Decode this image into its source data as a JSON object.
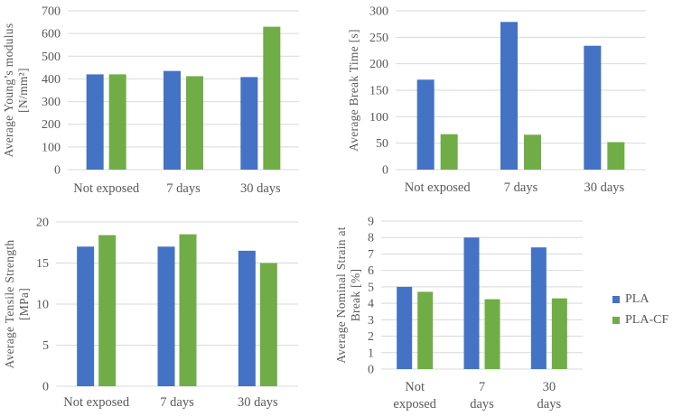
{
  "figure": {
    "description": "2x2 grid of grouped bar charts comparing PLA and PLA-CF after UV exposure",
    "background": "#ffffff"
  },
  "colors": {
    "pla": "#4472C4",
    "pla_cf": "#70AD47",
    "axis_text": "#595959",
    "gridline": "#D9D9D9"
  },
  "legend": {
    "position": "middle-right",
    "items": [
      {
        "label": "PLA",
        "color": "#4472C4"
      },
      {
        "label": "PLA-CF",
        "color": "#70AD47"
      }
    ]
  },
  "chart_data": [
    {
      "type": "bar",
      "position": "top-left",
      "title": "",
      "xlabel": "",
      "ylabel": "Average Young’s modulus [N/mm²]",
      "ylabel_lines": [
        "Average Young’s modulus",
        "[N/mm²]"
      ],
      "categories": [
        "Not exposed",
        "7 days",
        "30 days"
      ],
      "series": [
        {
          "name": "PLA",
          "color": "#4472C4",
          "values": [
            420,
            435,
            408
          ]
        },
        {
          "name": "PLA-CF",
          "color": "#70AD47",
          "values": [
            420,
            412,
            630
          ]
        }
      ],
      "ylim": [
        0,
        700
      ],
      "yticks": [
        0,
        100,
        200,
        300,
        400,
        500,
        600,
        700
      ],
      "grid": true,
      "legend_position": "none"
    },
    {
      "type": "bar",
      "position": "top-right",
      "title": "",
      "xlabel": "",
      "ylabel": "Average Break Time [s]",
      "ylabel_lines": [
        "Average Break Time [s]"
      ],
      "categories": [
        "Not exposed",
        "7 days",
        "30 days"
      ],
      "series": [
        {
          "name": "PLA",
          "color": "#4472C4",
          "values": [
            170,
            279,
            234
          ]
        },
        {
          "name": "PLA-CF",
          "color": "#70AD47",
          "values": [
            67,
            66,
            52
          ]
        }
      ],
      "ylim": [
        0,
        300
      ],
      "yticks": [
        0,
        50,
        100,
        150,
        200,
        250,
        300
      ],
      "grid": true,
      "legend_position": "none"
    },
    {
      "type": "bar",
      "position": "bottom-left",
      "title": "",
      "xlabel": "",
      "ylabel": "Average Tensile Strength [MPa]",
      "ylabel_lines": [
        "Average Tensile Strength",
        "[MPa]"
      ],
      "categories": [
        "Not exposed",
        "7 days",
        "30 days"
      ],
      "series": [
        {
          "name": "PLA",
          "color": "#4472C4",
          "values": [
            17,
            17,
            16.5
          ]
        },
        {
          "name": "PLA-CF",
          "color": "#70AD47",
          "values": [
            18.4,
            18.5,
            15
          ]
        }
      ],
      "ylim": [
        0,
        20
      ],
      "yticks": [
        0,
        5,
        10,
        15,
        20
      ],
      "grid": true,
      "legend_position": "none"
    },
    {
      "type": "bar",
      "position": "bottom-right",
      "title": "",
      "xlabel": "",
      "ylabel": "Average Nominal Strain at Break [%]",
      "ylabel_lines": [
        "Average Nominal Strain at",
        "Break [%]"
      ],
      "categories": [
        "Not exposed",
        "7 days",
        "30 days"
      ],
      "series": [
        {
          "name": "PLA",
          "color": "#4472C4",
          "values": [
            5,
            8,
            7.4
          ]
        },
        {
          "name": "PLA-CF",
          "color": "#70AD47",
          "values": [
            4.7,
            4.25,
            4.3
          ]
        }
      ],
      "ylim": [
        0,
        9
      ],
      "yticks": [
        0,
        1,
        2,
        3,
        4,
        5,
        6,
        7,
        8,
        9
      ],
      "grid": true,
      "legend_position": "right"
    }
  ]
}
